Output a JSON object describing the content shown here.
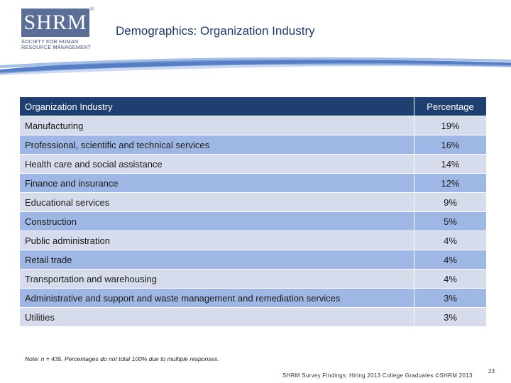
{
  "logo": {
    "mark": "SHRM",
    "reg": "®",
    "tagline_1": "SOCIETY FOR HUMAN",
    "tagline_2": "RESOURCE MANAGEMENT"
  },
  "title": "Demographics: Organization Industry",
  "table": {
    "headers": [
      "Organization Industry",
      "Percentage"
    ],
    "rows": [
      {
        "industry": "Manufacturing",
        "pct": "19%"
      },
      {
        "industry": "Professional, scientific and technical services",
        "pct": "16%"
      },
      {
        "industry": "Health care and social assistance",
        "pct": "14%"
      },
      {
        "industry": "Finance and insurance",
        "pct": "12%"
      },
      {
        "industry": "Educational services",
        "pct": "9%"
      },
      {
        "industry": "Construction",
        "pct": "5%"
      },
      {
        "industry": "Public administration",
        "pct": "4%"
      },
      {
        "industry": "Retail trade",
        "pct": "4%"
      },
      {
        "industry": "Transportation and warehousing",
        "pct": "4%"
      },
      {
        "industry": "Administrative and support and waste management and remediation services",
        "pct": "3%"
      },
      {
        "industry": "Utilities",
        "pct": "3%"
      }
    ]
  },
  "note": "Note: n = 435. Percentages do not total 100% due to multiple responses.",
  "footer": "SHRM Survey Findings: Hiring 2013 College Graduates ©SHRM 2013",
  "page_number": "23",
  "colors": {
    "header": "#1f3f70",
    "row_light": "#d6dceb",
    "row_dark": "#9fb7e4",
    "title": "#1f3a6b"
  }
}
